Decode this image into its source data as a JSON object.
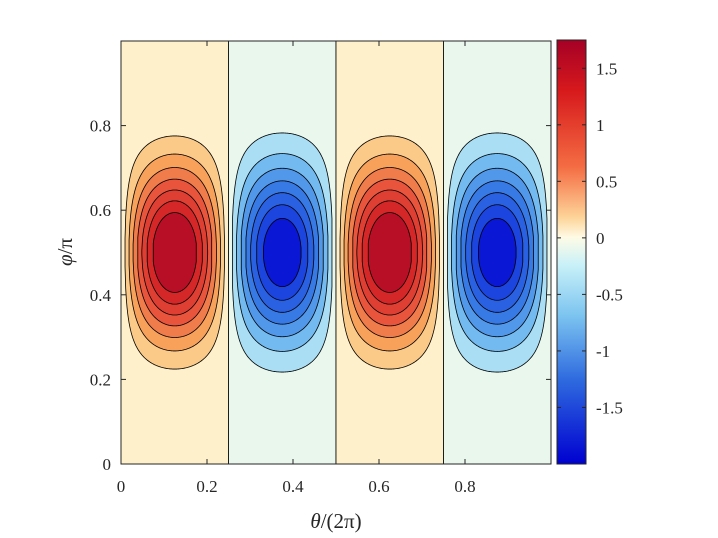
{
  "chart_data": {
    "type": "heatmap",
    "subtype": "filled-contour",
    "title": "",
    "xlabel_var": "θ",
    "xlabel_rest": "/(2π)",
    "ylabel_var": "φ",
    "ylabel_rest": "/π",
    "xlim": [
      0,
      1
    ],
    "ylim": [
      0,
      1
    ],
    "xticks": [
      0,
      0.2,
      0.4,
      0.6,
      0.8
    ],
    "xtick_labels": [
      "0",
      "0.2",
      "0.4",
      "0.6",
      "0.8"
    ],
    "yticks": [
      0,
      0.2,
      0.4,
      0.6,
      0.8
    ],
    "ytick_labels": [
      "0",
      "0.2",
      "0.4",
      "0.6",
      "0.8"
    ],
    "grid": false,
    "field": "approximately sin(4πx)·sin(πy)^5 scaled so max ≈ 1.75, min ≈ -2.0",
    "peaks": [
      {
        "x": 0.125,
        "y": 0.5,
        "value": 1.75
      },
      {
        "x": 0.375,
        "y": 0.5,
        "value": -2.0
      },
      {
        "x": 0.625,
        "y": 0.5,
        "value": 1.75
      },
      {
        "x": 0.875,
        "y": 0.5,
        "value": -2.0
      }
    ],
    "contour_levels_positive": [
      0.2,
      0.4,
      0.6,
      0.8,
      1.0,
      1.2,
      1.4
    ],
    "contour_levels_negative": [
      -0.2,
      -0.45,
      -0.7,
      -0.95,
      -1.2,
      -1.45,
      -1.7
    ],
    "colorbar": {
      "range": [
        -2.0,
        1.75
      ],
      "ticks": [
        1.5,
        1,
        0.5,
        0,
        -0.5,
        -1,
        -1.5
      ],
      "tick_labels": [
        "1.5",
        "1",
        "0.5",
        "0",
        "-0.5",
        "-1",
        "-1.5"
      ],
      "colormap": "red-white-blue (diverging)",
      "colors": {
        "max": "#a50026",
        "high": "#e0302e",
        "mid_high": "#f7a15a",
        "zero": "#fef8df",
        "mid_low": "#c9f1f8",
        "low": "#2f6bdf",
        "min": "#0b0bd6"
      }
    },
    "contour_line_color": "#000000"
  }
}
